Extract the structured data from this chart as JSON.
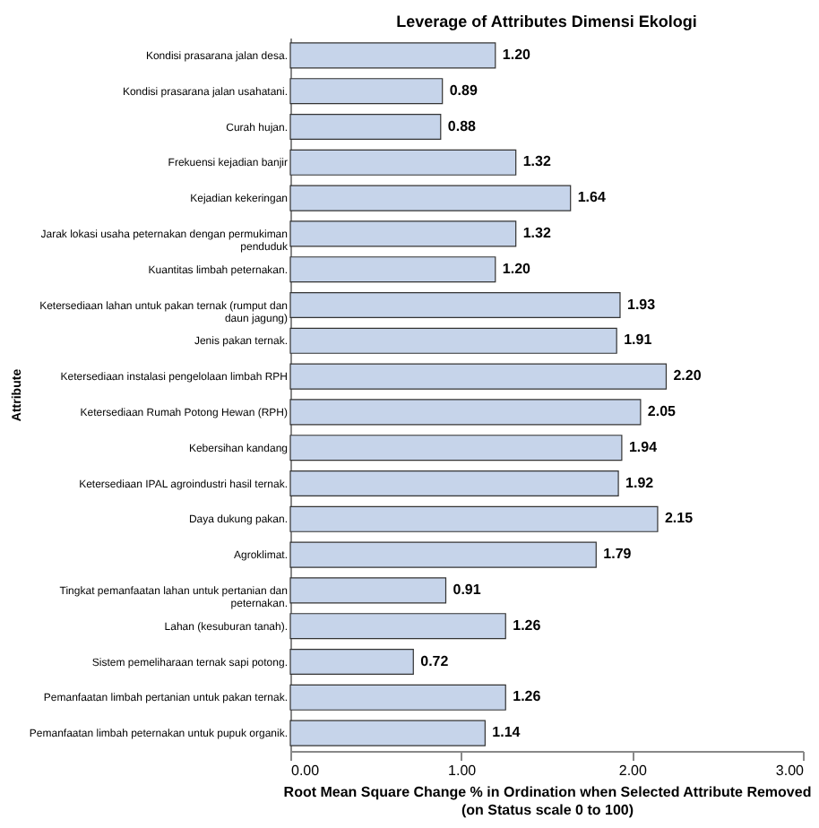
{
  "chart_data": {
    "type": "bar",
    "orientation": "horizontal",
    "title": "Leverage of Attributes Dimensi Ekologi",
    "xlabel": "Root Mean Square Change % in Ordination when Selected Attribute Removed (on Status scale 0 to 100)",
    "ylabel": "Attribute",
    "categories": [
      "Kondisi prasarana jalan desa.",
      "Kondisi prasarana jalan usahatani.",
      "Curah hujan.",
      "Frekuensi kejadian banjir",
      "Kejadian kekeringan",
      "Jarak lokasi usaha peternakan dengan permukiman penduduk",
      "Kuantitas limbah peternakan.",
      "Ketersediaan lahan untuk pakan ternak (rumput dan daun jagung)",
      "Jenis pakan ternak.",
      "Ketersediaan instalasi pengelolaan limbah RPH",
      "Ketersediaan Rumah Potong Hewan (RPH)",
      "Kebersihan kandang",
      "Ketersediaan IPAL agroindustri hasil ternak.",
      "Daya dukung pakan.",
      "Agroklimat.",
      "Tingkat pemanfaatan lahan untuk pertanian dan peternakan.",
      "Lahan (kesuburan tanah).",
      "Sistem pemeliharaan ternak sapi potong.",
      "Pemanfaatan limbah pertanian untuk pakan ternak.",
      "Pemanfaatan limbah peternakan untuk pupuk organik."
    ],
    "values": [
      1.2,
      0.89,
      0.88,
      1.32,
      1.64,
      1.32,
      1.2,
      1.93,
      1.91,
      2.2,
      2.05,
      1.94,
      1.92,
      2.15,
      1.79,
      0.91,
      1.26,
      0.72,
      1.26,
      1.14
    ],
    "color": "#c6d4ea",
    "xlim": [
      0,
      3
    ],
    "xticks": [
      {
        "value": 0,
        "label": "0.00"
      },
      {
        "value": 1,
        "label": "1.00"
      },
      {
        "value": 2,
        "label": "2.00"
      },
      {
        "value": 3,
        "label": "3.00"
      }
    ],
    "value_labels": [
      "1.20",
      "0.89",
      "0.88",
      "1.32",
      "1.64",
      "1.32",
      "1.20",
      "1.93",
      "1.91",
      "2.20",
      "2.05",
      "1.94",
      "1.92",
      "2.15",
      "1.79",
      "0.91",
      "1.26",
      "0.72",
      "1.26",
      "1.14"
    ],
    "grid": false
  }
}
